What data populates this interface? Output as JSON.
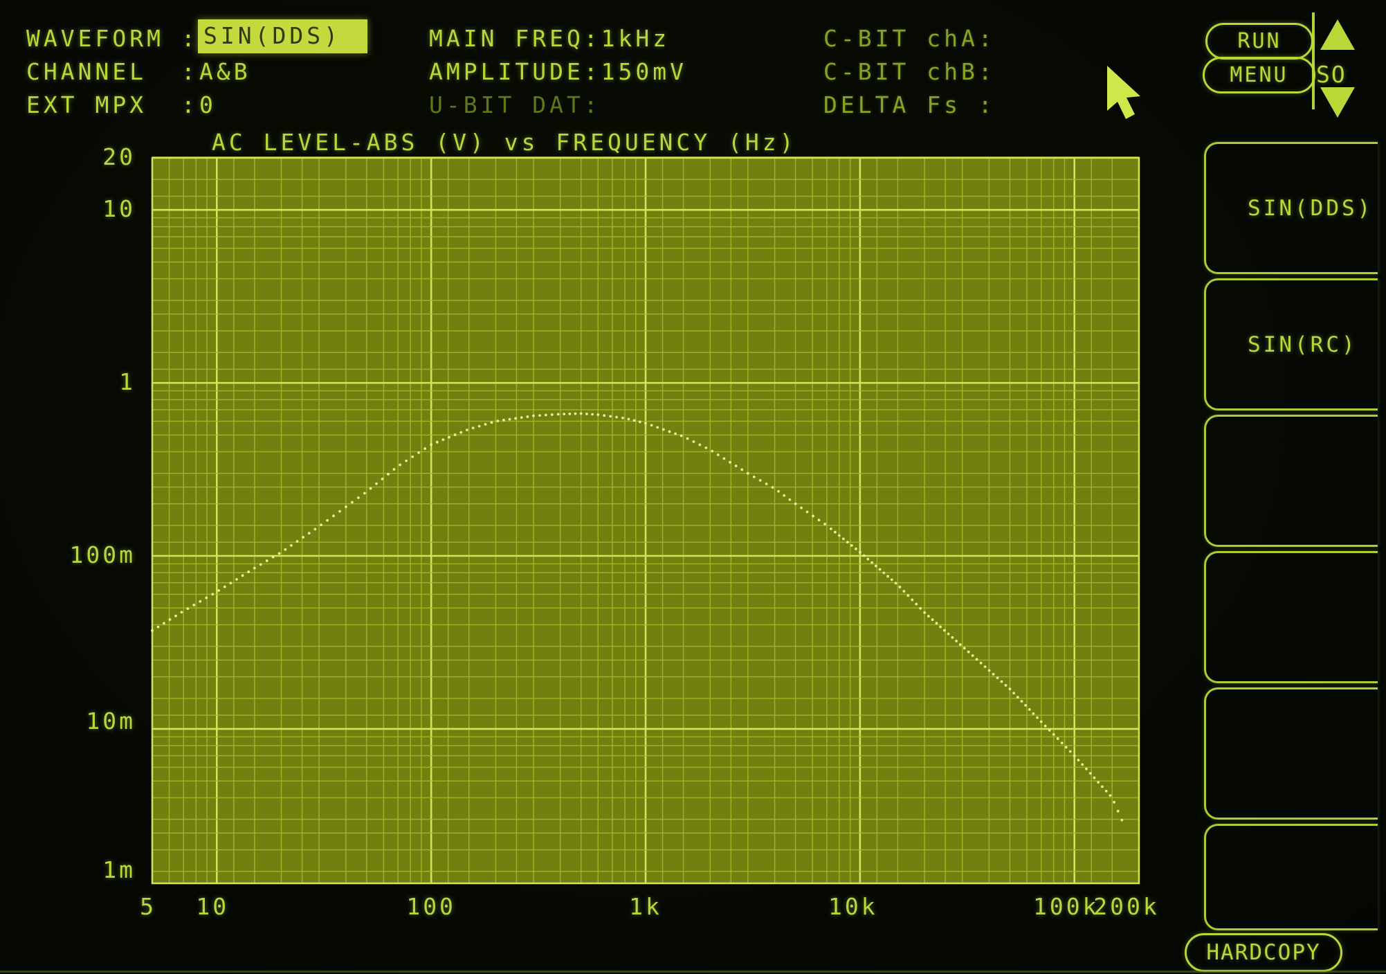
{
  "header": {
    "fields": [
      {
        "label": "WAVEFORM",
        "colon": ":",
        "value": "SIN(DDS)",
        "highlight": true
      },
      {
        "label": "CHANNEL",
        "colon": ":",
        "value": "A&B",
        "highlight": false
      },
      {
        "label": "EXT MPX",
        "colon": ":",
        "value": "0",
        "highlight": false
      }
    ],
    "mid_fields": [
      {
        "text": "MAIN FREQ:1kHz",
        "dim": false
      },
      {
        "text": "AMPLITUDE:150mV",
        "dim": false
      },
      {
        "text": "U-BIT DAT:",
        "dim": true
      }
    ],
    "right_fields": [
      {
        "text": "C-BIT chA:",
        "dim": true
      },
      {
        "text": "C-BIT chB:",
        "dim": true
      },
      {
        "text": "DELTA Fs :",
        "dim": true
      }
    ],
    "run_label": "RUN",
    "menu_label": "MENU",
    "scroll_label": "SO"
  },
  "side_menu": {
    "items": [
      "SIN(DDS)",
      "SIN(RC)",
      "",
      "",
      "",
      ""
    ]
  },
  "hardcopy_label": "HARDCOPY",
  "colors": {
    "accent_text": "#b9d838",
    "dim_text": "#5f7717",
    "plot_bg": "#71800f",
    "grid_minor": "#a6bb2b",
    "grid_major": "#d2e558",
    "trace": "#ecf6a0",
    "highlight_bg": "#c3d93e",
    "highlight_text": "#2f3a06"
  },
  "chart_data": {
    "type": "scatter",
    "title": "AC LEVEL-ABS (V) vs FREQUENCY (Hz)",
    "xlabel": "FREQUENCY (Hz)",
    "ylabel": "AC LEVEL-ABS (V)",
    "x_axis": {
      "scale": "log",
      "min": 5,
      "max": 200000,
      "ticks": [
        {
          "v": 5,
          "label": "5",
          "dx": -6
        },
        {
          "v": 10,
          "label": "10",
          "dx": -6
        },
        {
          "v": 100,
          "label": "100",
          "dx": 0
        },
        {
          "v": 1000,
          "label": "1k",
          "dx": 0
        },
        {
          "v": 10000,
          "label": "10k",
          "dx": -10
        },
        {
          "v": 100000,
          "label": "100k",
          "dx": -12
        },
        {
          "v": 200000,
          "label": "200k",
          "dx": -18
        }
      ]
    },
    "y_axis": {
      "scale": "log",
      "min": 0.00128,
      "max": 20,
      "ticks": [
        {
          "v": 20,
          "label": "20",
          "dy": 0
        },
        {
          "v": 10,
          "label": "10",
          "dy": 0
        },
        {
          "v": 1,
          "label": "1",
          "dy": 0
        },
        {
          "v": 0.1,
          "label": "100m",
          "dy": 0
        },
        {
          "v": 0.01,
          "label": "10m",
          "dy": -10
        },
        {
          "v": 0.001,
          "label": "1m",
          "dy": -45
        }
      ]
    },
    "grid": {
      "on": true,
      "minor_multipliers": [
        1,
        1.2,
        1.5,
        2,
        2.5,
        3,
        4,
        5,
        6,
        7,
        8,
        9
      ]
    },
    "series": [
      {
        "name": "AC LEVEL-ABS chA&B",
        "style": "dotted",
        "points": [
          [
            5,
            0.037
          ],
          [
            7,
            0.048
          ],
          [
            10,
            0.062
          ],
          [
            15,
            0.085
          ],
          [
            20,
            0.105
          ],
          [
            30,
            0.148
          ],
          [
            50,
            0.235
          ],
          [
            70,
            0.33
          ],
          [
            100,
            0.44
          ],
          [
            150,
            0.54
          ],
          [
            200,
            0.6
          ],
          [
            300,
            0.645
          ],
          [
            400,
            0.66
          ],
          [
            500,
            0.665
          ],
          [
            600,
            0.655
          ],
          [
            800,
            0.625
          ],
          [
            1000,
            0.585
          ],
          [
            1500,
            0.49
          ],
          [
            2000,
            0.41
          ],
          [
            3000,
            0.3
          ],
          [
            4000,
            0.245
          ],
          [
            5000,
            0.2
          ],
          [
            7000,
            0.15
          ],
          [
            10000,
            0.105
          ],
          [
            15000,
            0.068
          ],
          [
            20000,
            0.047
          ],
          [
            30000,
            0.03
          ],
          [
            50000,
            0.017
          ],
          [
            70000,
            0.011
          ],
          [
            100000,
            0.007
          ],
          [
            150000,
            0.004
          ],
          [
            170000,
            0.0028
          ]
        ]
      }
    ]
  }
}
